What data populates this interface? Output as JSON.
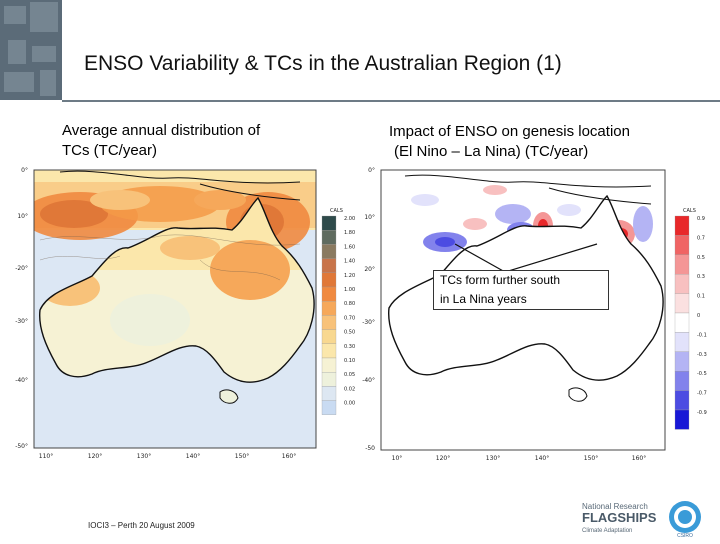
{
  "slide": {
    "title": "ENSO Variability & TCs in the Australian Region (1)",
    "footer": "IOCI3 – Perth 20 August 2009"
  },
  "left_panel": {
    "caption_line1": "Average annual distribution of",
    "caption_line2": "TCs (TC/year)",
    "lat_labels": [
      "0°",
      "10°",
      "-20°",
      "-30°",
      "-40°",
      "-50°"
    ],
    "lon_labels": [
      "110°",
      "120°",
      "130°",
      "140°",
      "150°",
      "160°"
    ],
    "legend_title": "CALS",
    "legend_values": [
      "2.00",
      "1.80",
      "1.60",
      "1.40",
      "1.20",
      "1.00",
      "0.80",
      "0.70",
      "0.50",
      "0.30",
      "0.10",
      "0.05",
      "0.02",
      "0.00"
    ],
    "legend_colors": [
      "#2f4b4b",
      "#5f6b5f",
      "#8a7a60",
      "#c8744a",
      "#e07838",
      "#f08a40",
      "#f6a85a",
      "#f8c27a",
      "#f8d890",
      "#fbe7ab",
      "#f6f2d4",
      "#eef1dc",
      "#dde7f2",
      "#c9dbf2"
    ]
  },
  "right_panel": {
    "caption_line1": "Impact of ENSO on genesis location",
    "caption_line2": "(El Nino – La Nina) (TC/year)",
    "lat_labels": [
      "0°",
      "10°",
      "20°",
      "-30°",
      "-40°",
      "-50"
    ],
    "lon_labels": [
      "10°",
      "120°",
      "130°",
      "140°",
      "150°",
      "160°"
    ],
    "legend_title": "CALS",
    "legend_values": [
      "0.9",
      "0.7",
      "0.5",
      "0.3",
      "0.1",
      "0",
      "-0.1",
      "-0.3",
      "-0.5",
      "-0.7",
      "-0.9"
    ],
    "legend_colors": [
      "#e8282a",
      "#f06464",
      "#f49696",
      "#f8c0c0",
      "#fbe0e0",
      "#ffffff",
      "#e2e2fb",
      "#b4b4f4",
      "#8282ec",
      "#4c4ce2",
      "#1818d6"
    ]
  },
  "callout": {
    "line1": "TCs form further south",
    "line2": "in La Nina years"
  },
  "logo": {
    "line1": "National Research",
    "line2": "FLAGSHIPS",
    "line3": "Climate Adaptation",
    "org": "CSIRO"
  }
}
